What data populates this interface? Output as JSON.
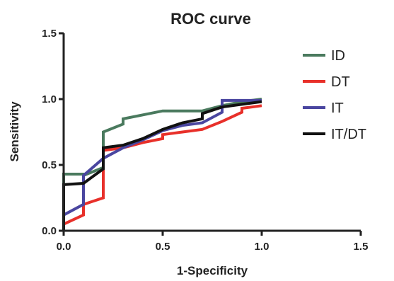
{
  "chart_data": {
    "type": "line",
    "title": "ROC curve",
    "xlabel": "1-Specificity",
    "ylabel": "Sensitivity",
    "xlim": [
      0.0,
      1.5
    ],
    "ylim": [
      0.0,
      1.5
    ],
    "xticks": [
      "0.0",
      "0.5",
      "1.0",
      "1.5"
    ],
    "yticks": [
      "0.0",
      "0.5",
      "1.0",
      "1.5"
    ],
    "grid": false,
    "legend_position": "right",
    "series": [
      {
        "name": "ID",
        "color": "#4a7a5e",
        "x": [
          0.0,
          0.0,
          0.1,
          0.1,
          0.2,
          0.2,
          0.3,
          0.3,
          0.4,
          0.5,
          0.6,
          0.7,
          0.8,
          0.9,
          1.0
        ],
        "y": [
          0.0,
          0.43,
          0.43,
          0.42,
          0.48,
          0.75,
          0.81,
          0.85,
          0.88,
          0.91,
          0.91,
          0.91,
          0.95,
          0.98,
          1.0
        ]
      },
      {
        "name": "DT",
        "color": "#e8302a",
        "x": [
          0.0,
          0.1,
          0.1,
          0.2,
          0.2,
          0.3,
          0.4,
          0.5,
          0.5,
          0.6,
          0.7,
          0.8,
          0.9,
          0.9,
          1.0
        ],
        "y": [
          0.05,
          0.12,
          0.2,
          0.25,
          0.61,
          0.63,
          0.67,
          0.7,
          0.73,
          0.75,
          0.77,
          0.83,
          0.9,
          0.93,
          0.95
        ]
      },
      {
        "name": "IT",
        "color": "#4a46a0",
        "x": [
          0.0,
          0.1,
          0.1,
          0.2,
          0.3,
          0.4,
          0.5,
          0.6,
          0.7,
          0.8,
          0.8,
          1.0
        ],
        "y": [
          0.12,
          0.2,
          0.42,
          0.55,
          0.63,
          0.69,
          0.76,
          0.8,
          0.82,
          0.9,
          0.99,
          0.99
        ]
      },
      {
        "name": "IT/DT",
        "color": "#111111",
        "x": [
          0.0,
          0.0,
          0.1,
          0.2,
          0.2,
          0.3,
          0.4,
          0.5,
          0.6,
          0.7,
          0.7,
          0.8,
          0.9,
          1.0
        ],
        "y": [
          0.0,
          0.35,
          0.36,
          0.47,
          0.63,
          0.65,
          0.7,
          0.77,
          0.82,
          0.85,
          0.89,
          0.94,
          0.96,
          0.98
        ]
      }
    ]
  }
}
